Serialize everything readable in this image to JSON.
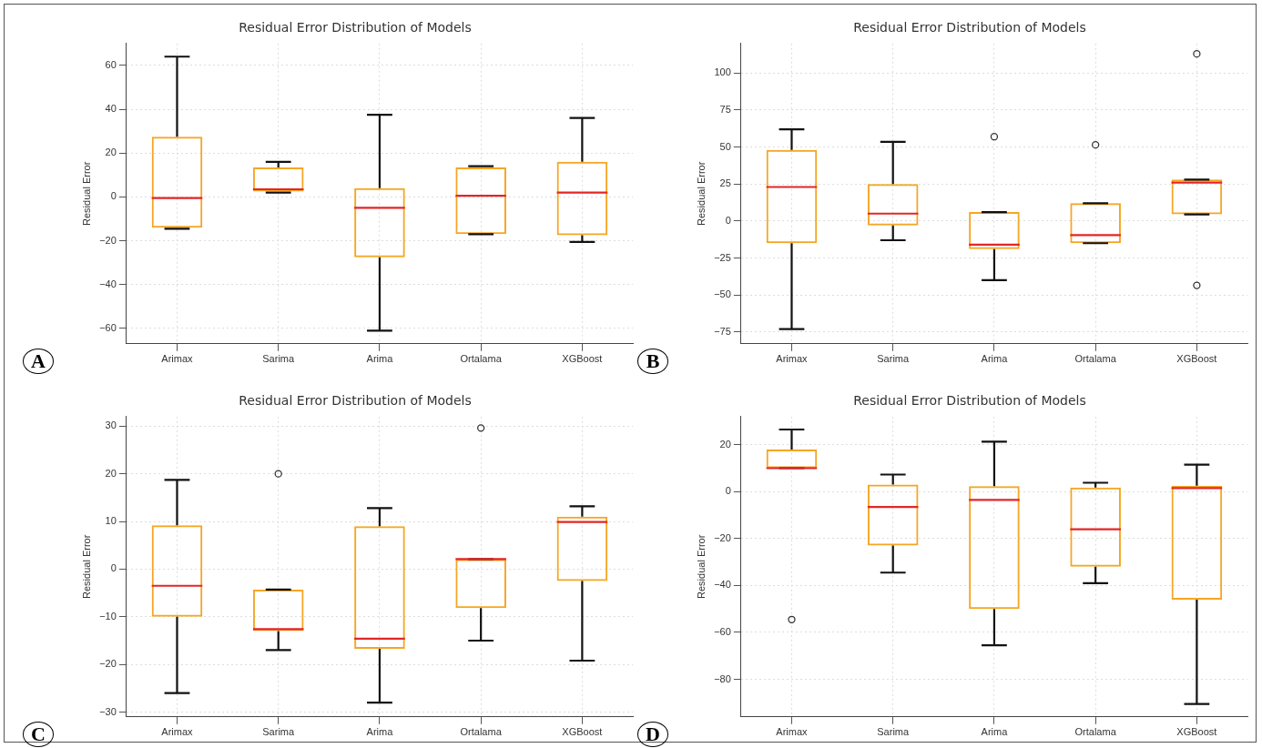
{
  "chart_data": [
    {
      "type": "box",
      "title": "Residual Error Distribution of Models",
      "ylabel": "Residual Error",
      "categories": [
        "Arimax",
        "Sarima",
        "Arima",
        "Ortalama",
        "XGBoost"
      ],
      "ylim": [
        -67,
        70
      ],
      "yticks": [
        -60,
        -40,
        -20,
        0,
        20,
        40,
        60
      ],
      "grid": true,
      "annotations": [
        "A"
      ],
      "series": [
        {
          "color": "#f5a623",
          "boxes": [
            {
              "low": -14.5,
              "q1": -14,
              "median": -0.5,
              "q3": 27.5,
              "high": 64
            },
            {
              "low": 2,
              "q1": 2.5,
              "median": 3.5,
              "q3": 13.5,
              "high": 16
            },
            {
              "low": -61,
              "q1": -27.5,
              "median": -5,
              "q3": 4,
              "high": 37.5
            },
            {
              "low": -17,
              "q1": -17,
              "median": 0.5,
              "q3": 13.5,
              "high": 14
            },
            {
              "low": -20.5,
              "q1": -17.5,
              "median": 2,
              "q3": 16,
              "high": 36
            }
          ]
        }
      ]
    },
    {
      "type": "box",
      "title": "Residual Error Distribution of Models",
      "ylabel": "Residual Error",
      "categories": [
        "Arimax",
        "Sarima",
        "Arima",
        "Ortalama",
        "XGBoost"
      ],
      "ylim": [
        -83,
        120
      ],
      "yticks": [
        -75,
        -50,
        -25,
        0,
        25,
        50,
        75,
        100
      ],
      "grid": true,
      "annotations": [
        "B"
      ],
      "series": [
        {
          "color": "#f5a623",
          "boxes": [
            {
              "low": -73,
              "q1": -15,
              "median": 23,
              "q3": 48,
              "high": 62
            },
            {
              "low": -13,
              "q1": -3,
              "median": 5,
              "q3": 25,
              "high": 53.5
            },
            {
              "low": -40,
              "q1": -19,
              "median": -16,
              "q3": 6,
              "high": 6,
              "outliers": [
                57
              ]
            },
            {
              "low": -15,
              "q1": -15,
              "median": -9.5,
              "q3": 12,
              "high": 12,
              "outliers": [
                51.5
              ]
            },
            {
              "low": 4.5,
              "q1": 4.5,
              "median": 26,
              "q3": 28,
              "high": 28,
              "outliers": [
                113,
                -43.5
              ]
            }
          ]
        }
      ]
    },
    {
      "type": "box",
      "title": "Residual Error Distribution of Models",
      "ylabel": "Residual Error",
      "categories": [
        "Arimax",
        "Sarima",
        "Arima",
        "Ortalama",
        "XGBoost"
      ],
      "ylim": [
        -31,
        32
      ],
      "yticks": [
        -30,
        -20,
        -10,
        0,
        10,
        20,
        30
      ],
      "grid": true,
      "annotations": [
        "C"
      ],
      "series": [
        {
          "color": "#f5a623",
          "boxes": [
            {
              "low": -26,
              "q1": -10,
              "median": -3.5,
              "q3": 9.2,
              "high": 18.7
            },
            {
              "low": -17,
              "q1": -13,
              "median": -12.6,
              "q3": -4.3,
              "high": -4.3,
              "outliers": [
                20
              ]
            },
            {
              "low": -28,
              "q1": -16.7,
              "median": -14.6,
              "q3": 9,
              "high": 12.8
            },
            {
              "low": -15,
              "q1": -8.2,
              "median": 2.1,
              "q3": 2.1,
              "high": 2.1,
              "outliers": [
                29.6
              ]
            },
            {
              "low": -19.2,
              "q1": -2.5,
              "median": 9.9,
              "q3": 11,
              "high": 13.2
            }
          ]
        }
      ]
    },
    {
      "type": "box",
      "title": "Residual Error Distribution of Models",
      "ylabel": "Residual Error",
      "categories": [
        "Arimax",
        "Sarima",
        "Arima",
        "Ortalama",
        "XGBoost"
      ],
      "ylim": [
        -96,
        32
      ],
      "yticks": [
        -80,
        -60,
        -40,
        -20,
        0,
        20
      ],
      "grid": true,
      "annotations": [
        "D"
      ],
      "series": [
        {
          "color": "#f5a623",
          "boxes": [
            {
              "low": 10,
              "q1": 10,
              "median": 10,
              "q3": 18,
              "high": 26.5,
              "outliers": [
                -54.5
              ]
            },
            {
              "low": -34.5,
              "q1": -23,
              "median": -6.5,
              "q3": 3,
              "high": 7.3
            },
            {
              "low": -65.5,
              "q1": -50,
              "median": -3.5,
              "q3": 2.3,
              "high": 21.3
            },
            {
              "low": -39,
              "q1": -32,
              "median": -16,
              "q3": 1.8,
              "high": 3.8
            },
            {
              "low": -90.5,
              "q1": -46,
              "median": 1.5,
              "q3": 2.5,
              "high": 11.5
            }
          ]
        }
      ]
    }
  ]
}
